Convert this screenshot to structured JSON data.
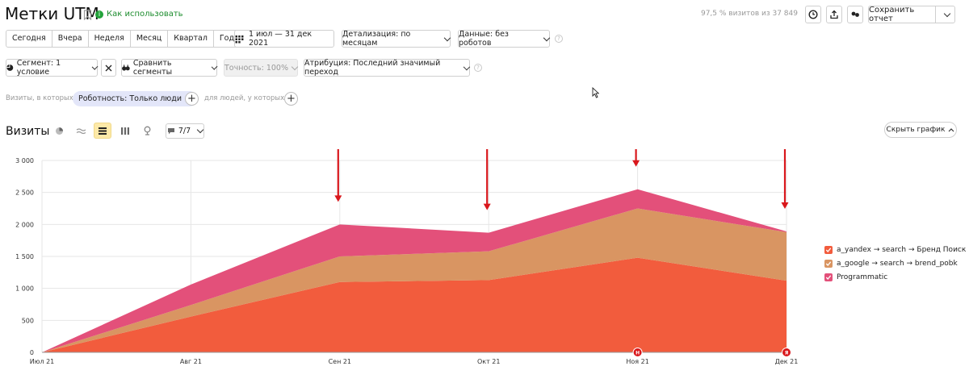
{
  "header": {
    "title": "Метки UTM",
    "howto_label": "Как использовать",
    "visits_share": "97,5 % визитов из 37 849",
    "save_report_label": "Сохранить отчет"
  },
  "period_tabs": [
    "Сегодня",
    "Вчера",
    "Неделя",
    "Месяц",
    "Квартал",
    "Год"
  ],
  "date_range": "1 июл — 31 дек 2021",
  "detail_dropdown": "Детализация: по месяцам",
  "data_dropdown": "Данные: без роботов",
  "segment_bar": {
    "segment_label": "Сегмент: 1 условие",
    "compare_label": "Сравнить сегменты",
    "accuracy_label": "Точность: 100%",
    "attribution_label": "Атрибуция: Последний значимый переход"
  },
  "filter_row": {
    "prefix": "Визиты, в которых",
    "filter_chip": "Роботность: Только люди",
    "people_prefix": "для людей, у которых"
  },
  "chart_header": {
    "title": "Визиты",
    "series_count": "7/7",
    "hide_chart_label": "Скрыть график"
  },
  "colors": {
    "series1": "#f25c3d",
    "series2": "#d99562",
    "series3": "#e3507a",
    "arrow": "#d9171c",
    "accent": "#22a33a"
  },
  "chart_data": {
    "type": "area",
    "stacked": true,
    "x": [
      "Июл 21",
      "Авг 21",
      "Сен 21",
      "Окт 21",
      "Ноя 21",
      "Дек 21"
    ],
    "series": [
      {
        "name": "a_yandex → search → Бренд Поиск",
        "color": "#f25c3d",
        "values": [
          0,
          560,
          1100,
          1130,
          1480,
          1120
        ]
      },
      {
        "name": "a_google → search → brend_pobk",
        "color": "#d99562",
        "values": [
          0,
          180,
          400,
          450,
          770,
          760
        ]
      },
      {
        "name": "Programmatic",
        "color": "#e3507a",
        "values": [
          0,
          320,
          500,
          290,
          300,
          10
        ]
      }
    ],
    "y_ticks": [
      0,
      500,
      1000,
      1500,
      2000,
      2500,
      3000
    ],
    "y_tick_labels": [
      "0",
      "500",
      "1 000",
      "1 500",
      "2 000",
      "2 500",
      "3 000"
    ],
    "ylim": [
      0,
      3000
    ],
    "grid": true,
    "legend_position": "right",
    "annotations": {
      "markers": [
        {
          "x": "Ноя 21",
          "label": "Н"
        },
        {
          "x": "Дек 21",
          "label": "Я"
        }
      ],
      "arrows_at": [
        "Сен 21",
        "Окт 21",
        "Ноя 21",
        "Дек 21"
      ]
    }
  }
}
